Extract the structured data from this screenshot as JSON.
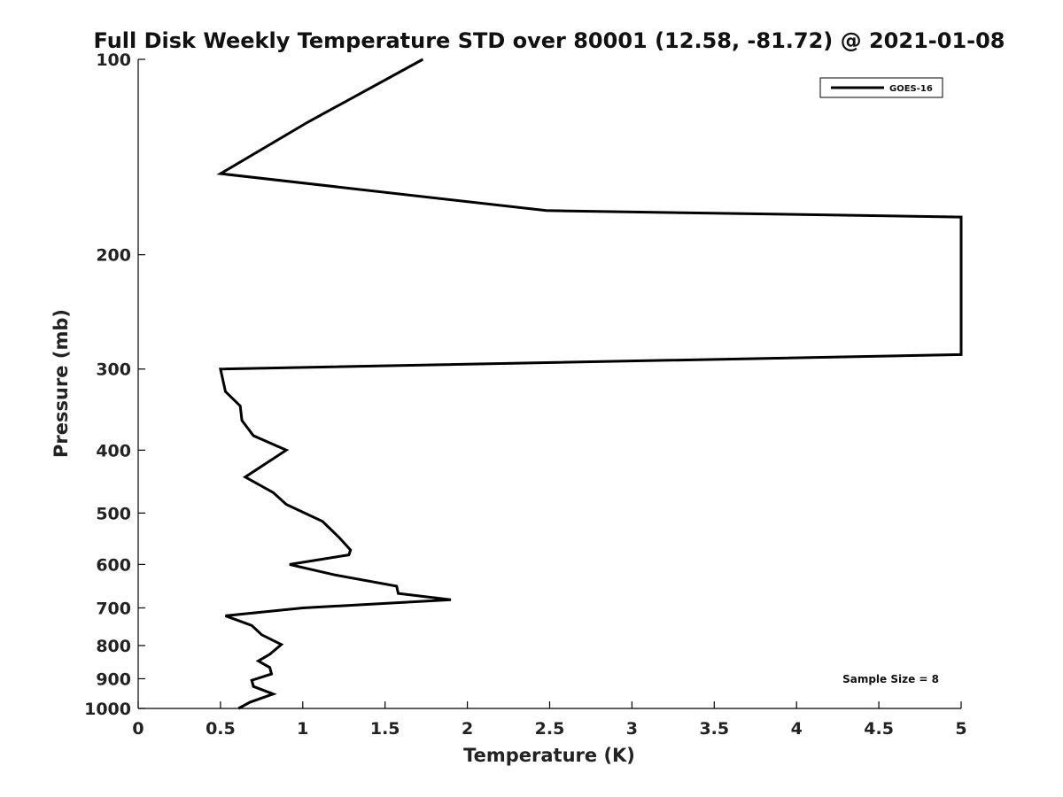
{
  "chart_data": {
    "type": "line",
    "title": "Full Disk Weekly Temperature STD over 80001 (12.58, -81.72) @ 2021-01-08",
    "xlabel": "Temperature (K)",
    "ylabel": "Pressure (mb)",
    "xlim": [
      0,
      5
    ],
    "ylim": [
      100,
      1000
    ],
    "yscale": "log",
    "yreversed": true,
    "xticks": [
      0,
      0.5,
      1,
      1.5,
      2,
      2.5,
      3,
      3.5,
      4,
      4.5,
      5
    ],
    "xtick_labels": [
      "0",
      "0.5",
      "1",
      "1.5",
      "2",
      "2.5",
      "3",
      "3.5",
      "4",
      "4.5",
      "5"
    ],
    "yticks": [
      100,
      200,
      300,
      400,
      500,
      600,
      700,
      800,
      900,
      1000
    ],
    "ytick_labels": [
      "100",
      "200",
      "300",
      "400",
      "500",
      "600",
      "700",
      "800",
      "900",
      "1000"
    ],
    "legend_position": "top-right",
    "series": [
      {
        "name": "GOES-16",
        "color": "#000000",
        "points": [
          [
            1.73,
            100
          ],
          [
            1.03,
            125
          ],
          [
            0.5,
            150
          ],
          [
            2.48,
            171
          ],
          [
            5.0,
            175
          ],
          [
            5.0,
            285
          ],
          [
            0.5,
            300
          ],
          [
            0.53,
            325
          ],
          [
            0.62,
            342
          ],
          [
            0.63,
            360
          ],
          [
            0.7,
            380
          ],
          [
            0.9,
            400
          ],
          [
            0.65,
            440
          ],
          [
            0.82,
            465
          ],
          [
            0.9,
            485
          ],
          [
            1.12,
            515
          ],
          [
            1.22,
            545
          ],
          [
            1.29,
            570
          ],
          [
            1.28,
            580
          ],
          [
            0.92,
            600
          ],
          [
            1.2,
            623
          ],
          [
            1.57,
            648
          ],
          [
            1.58,
            665
          ],
          [
            1.9,
            680
          ],
          [
            1.0,
            700
          ],
          [
            0.53,
            720
          ],
          [
            0.69,
            745
          ],
          [
            0.75,
            770
          ],
          [
            0.87,
            797
          ],
          [
            0.8,
            825
          ],
          [
            0.73,
            845
          ],
          [
            0.8,
            865
          ],
          [
            0.81,
            885
          ],
          [
            0.69,
            905
          ],
          [
            0.7,
            925
          ],
          [
            0.82,
            950
          ],
          [
            0.68,
            978
          ],
          [
            0.61,
            1000
          ]
        ]
      }
    ],
    "annotation": "Sample Size = 8"
  }
}
